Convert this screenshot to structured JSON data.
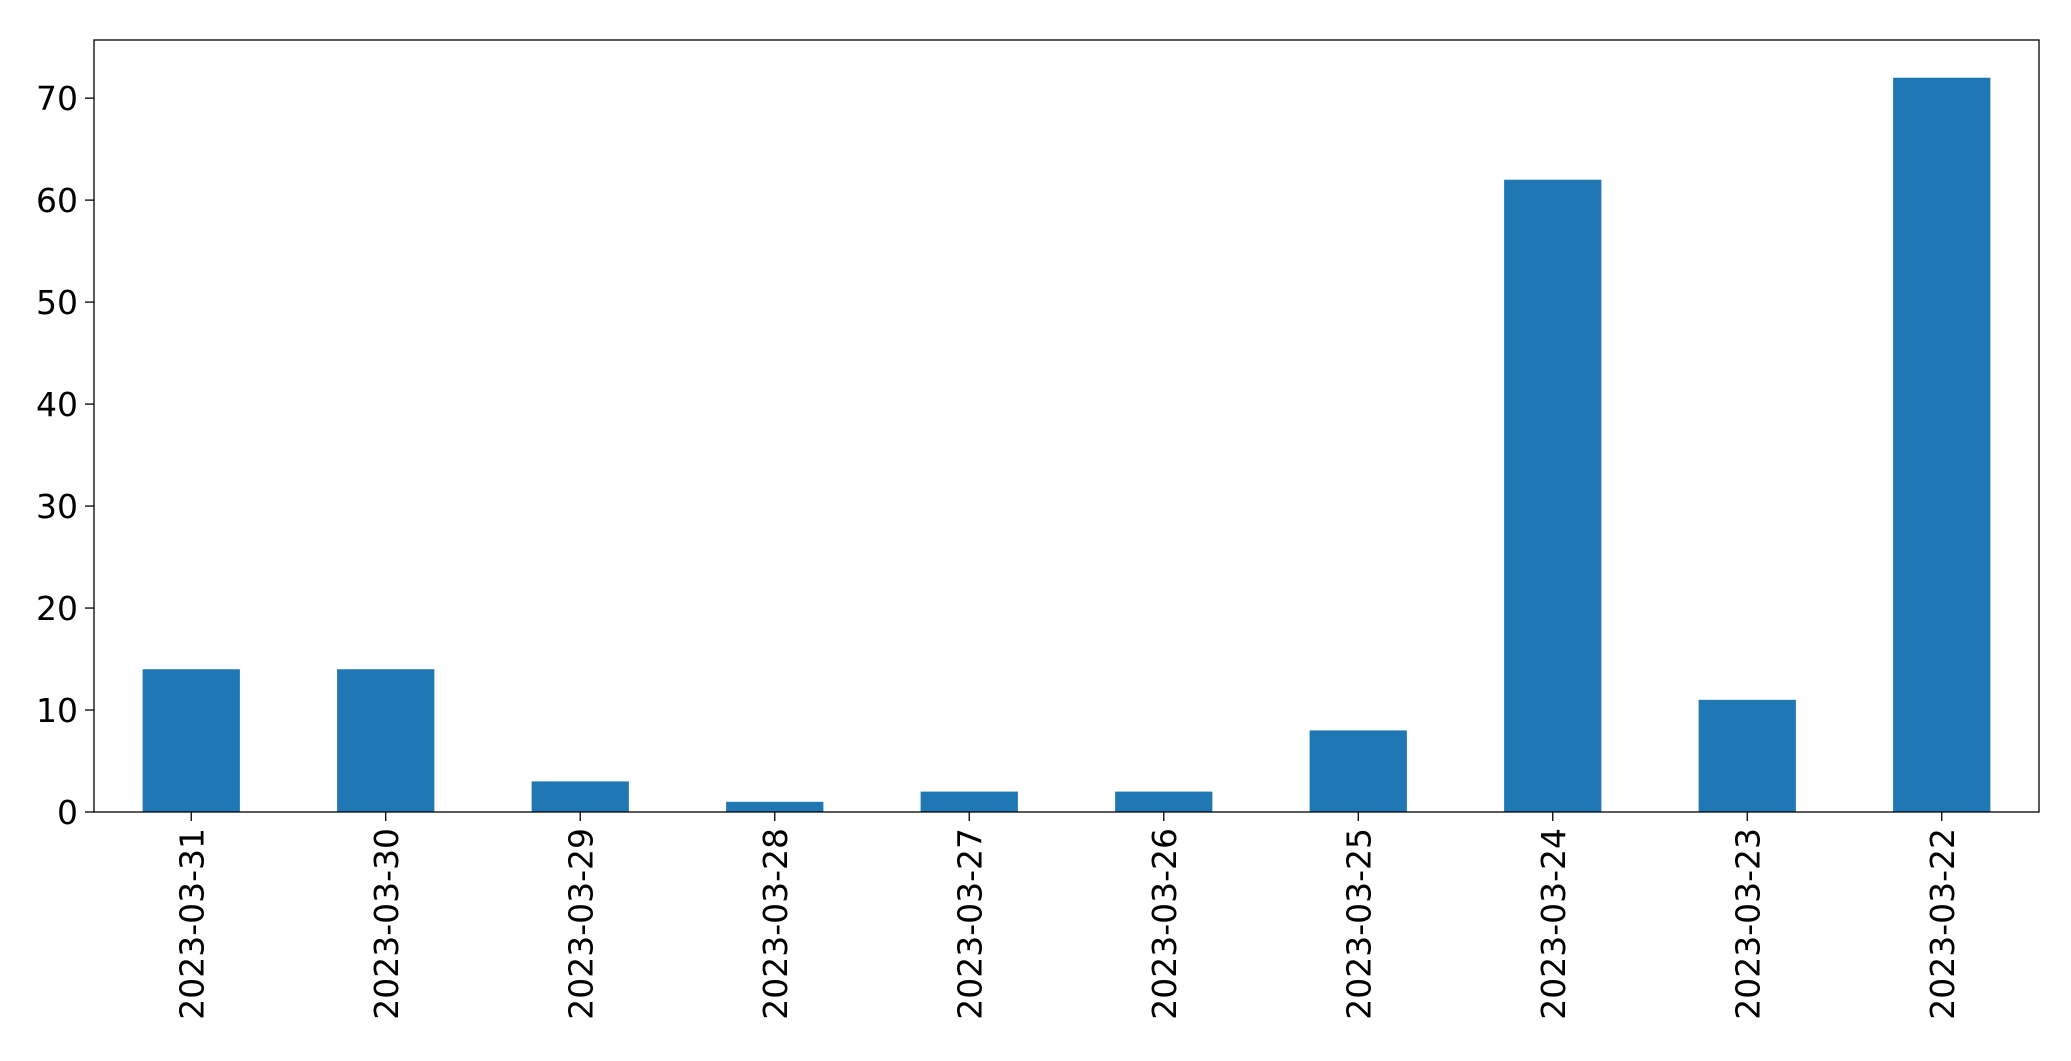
{
  "chart_data": {
    "type": "bar",
    "categories": [
      "2023-03-31",
      "2023-03-30",
      "2023-03-29",
      "2023-03-28",
      "2023-03-27",
      "2023-03-26",
      "2023-03-25",
      "2023-03-24",
      "2023-03-23",
      "2023-03-22"
    ],
    "values": [
      14,
      14,
      3,
      1,
      2,
      2,
      8,
      62,
      11,
      72
    ],
    "color": "#1f77b4",
    "ylim": [
      0,
      75.7
    ],
    "yticks": [
      0,
      10,
      20,
      30,
      40,
      50,
      60,
      70
    ],
    "grid": false
  }
}
